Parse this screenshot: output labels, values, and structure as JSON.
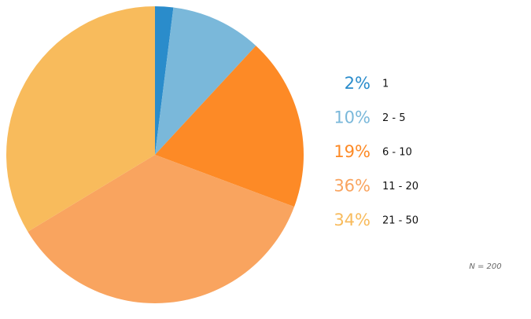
{
  "chart_data": {
    "type": "pie",
    "categories": [
      "1",
      "2 - 5",
      "6 - 10",
      "11 - 20",
      "21 - 50"
    ],
    "values": [
      2,
      10,
      19,
      36,
      34
    ],
    "value_labels": [
      "2%",
      "10%",
      "19%",
      "36%",
      "34%"
    ],
    "colors": [
      "#2a8ccb",
      "#7ab8da",
      "#fd8a26",
      "#f9a45f",
      "#f8bb5c"
    ],
    "annotation": "N = 200"
  }
}
